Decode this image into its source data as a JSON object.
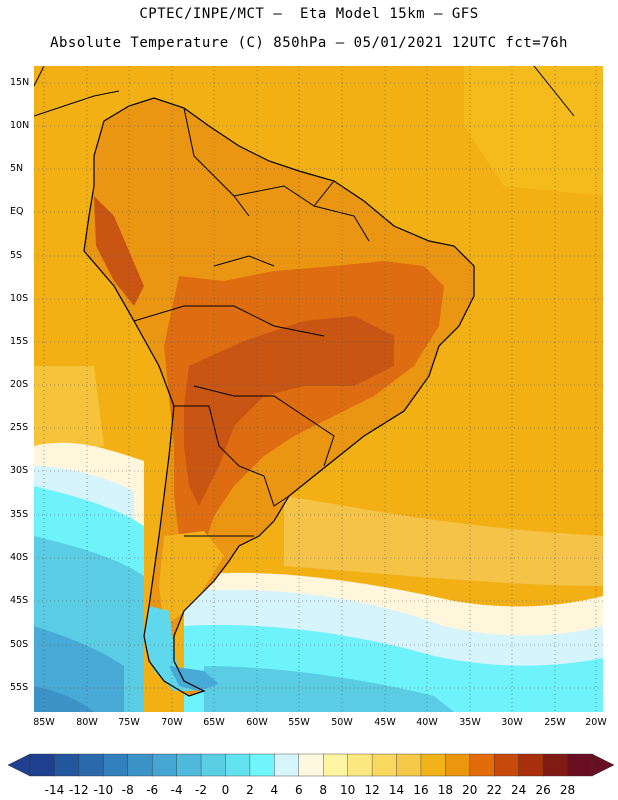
{
  "header": {
    "line1": "CPTEC/INPE/MCT –  Eta Model 15km – GFS",
    "line2": "Absolute Temperature (C) 850hPa – 05/01/2021 12UTC fct=76h"
  },
  "axes": {
    "lat_labels": [
      "15N",
      "10N",
      "5N",
      "EQ",
      "5S",
      "10S",
      "15S",
      "20S",
      "25S",
      "30S",
      "35S",
      "40S",
      "45S",
      "50S",
      "55S"
    ],
    "lon_labels": [
      "85W",
      "80W",
      "75W",
      "70W",
      "65W",
      "60W",
      "55W",
      "50W",
      "45W",
      "40W",
      "35W",
      "30W",
      "25W",
      "20W"
    ],
    "grid": "dotted"
  },
  "colorbar": {
    "labels": [
      "-14",
      "-12",
      "-10",
      "-8",
      "-6",
      "-4",
      "-2",
      "0",
      "2",
      "4",
      "6",
      "8",
      "10",
      "12",
      "14",
      "16",
      "18",
      "20",
      "22",
      "24",
      "26",
      "28"
    ],
    "colors": [
      "#1f3f8f",
      "#23589e",
      "#2a6aac",
      "#3280bc",
      "#3b93c8",
      "#45a6d4",
      "#4fbadc",
      "#5acfe4",
      "#63e2ee",
      "#6ff5fb",
      "#d6f6fb",
      "#fff8e0",
      "#fdf5a0",
      "#fbe880",
      "#f8d860",
      "#f5c84a",
      "#f1b21a",
      "#eb960c",
      "#e36c0a",
      "#c84a0a",
      "#a8300c",
      "#801a14",
      "#6a0f22"
    ]
  },
  "legend_colors": {
    "ocean_warm": "#f2b015",
    "land_warm": "#eb9612",
    "land_hot": "#dd6d10",
    "land_hottest": "#c85512",
    "cold_ocean": "#5fd8ee",
    "coast": "#000000"
  }
}
